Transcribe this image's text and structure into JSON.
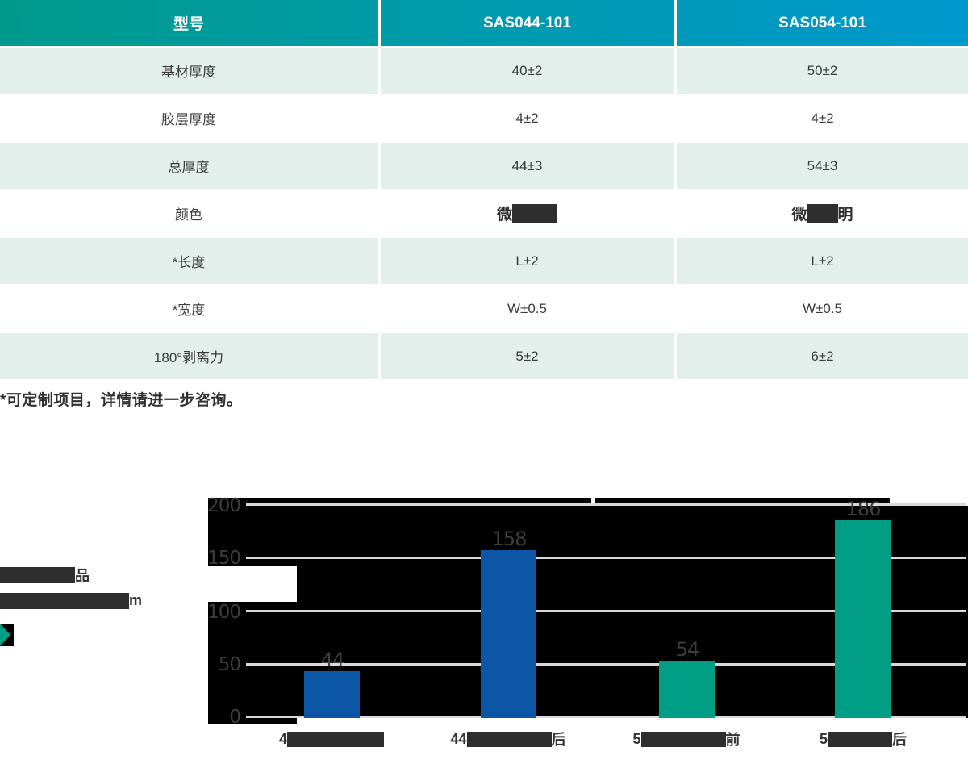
{
  "table": {
    "header": {
      "col1": "型号",
      "col2": "SAS044-101",
      "col3": "SAS054-101"
    },
    "rows": [
      {
        "label": "基材厚度",
        "v1": "40±2",
        "v2": "50±2"
      },
      {
        "label": "胶层厚度",
        "v1": "4±2",
        "v2": "4±2"
      },
      {
        "label": "总厚度",
        "v1": "44±3",
        "v2": "54±3"
      },
      {
        "label": "颜色",
        "v1_prefix": "微",
        "v2_prefix": "微",
        "v2_suffix": "明"
      },
      {
        "label": "*长度",
        "v1": "L±2",
        "v2": "L±2"
      },
      {
        "label": "*宽度",
        "v1": "W±0.5",
        "v2": "W±0.5"
      },
      {
        "label": "180°剥离力",
        "v1": "5±2",
        "v2": "6±2"
      }
    ]
  },
  "note": "*可定制项目，详情请进一步咨询。",
  "aside": {
    "line1_suffix": "品",
    "line2_suffix": "m",
    "bullet_icon": "play-triangle-icon"
  },
  "chart_data": {
    "type": "bar",
    "values": [
      44,
      158,
      54,
      186
    ],
    "value_labels": [
      "44",
      "158",
      "54",
      "186"
    ],
    "bar_colors": [
      "#0B57A5",
      "#0B57A5",
      "#009E85",
      "#009E85"
    ],
    "categories_visible": [
      {
        "prefix": "4",
        "suffix": ""
      },
      {
        "prefix": "44",
        "suffix": "后"
      },
      {
        "prefix": "5",
        "suffix": "前"
      },
      {
        "prefix": "5",
        "suffix": "后"
      }
    ],
    "yticks": [
      "200",
      "150",
      "100",
      "50",
      "0"
    ],
    "ylim": [
      0,
      200
    ],
    "grid": true,
    "plot_background": "#000000",
    "gridline_color": "#D9D9D9"
  },
  "colors": {
    "header_gradient_left": "#009A8C",
    "header_gradient_right": "#0099CE",
    "row_mint": "#E2EFEB",
    "text_dark": "#3B3B3B",
    "redacted": "#2E2E2E",
    "bar_blue": "#0B57A5",
    "bar_teal": "#009E85"
  }
}
